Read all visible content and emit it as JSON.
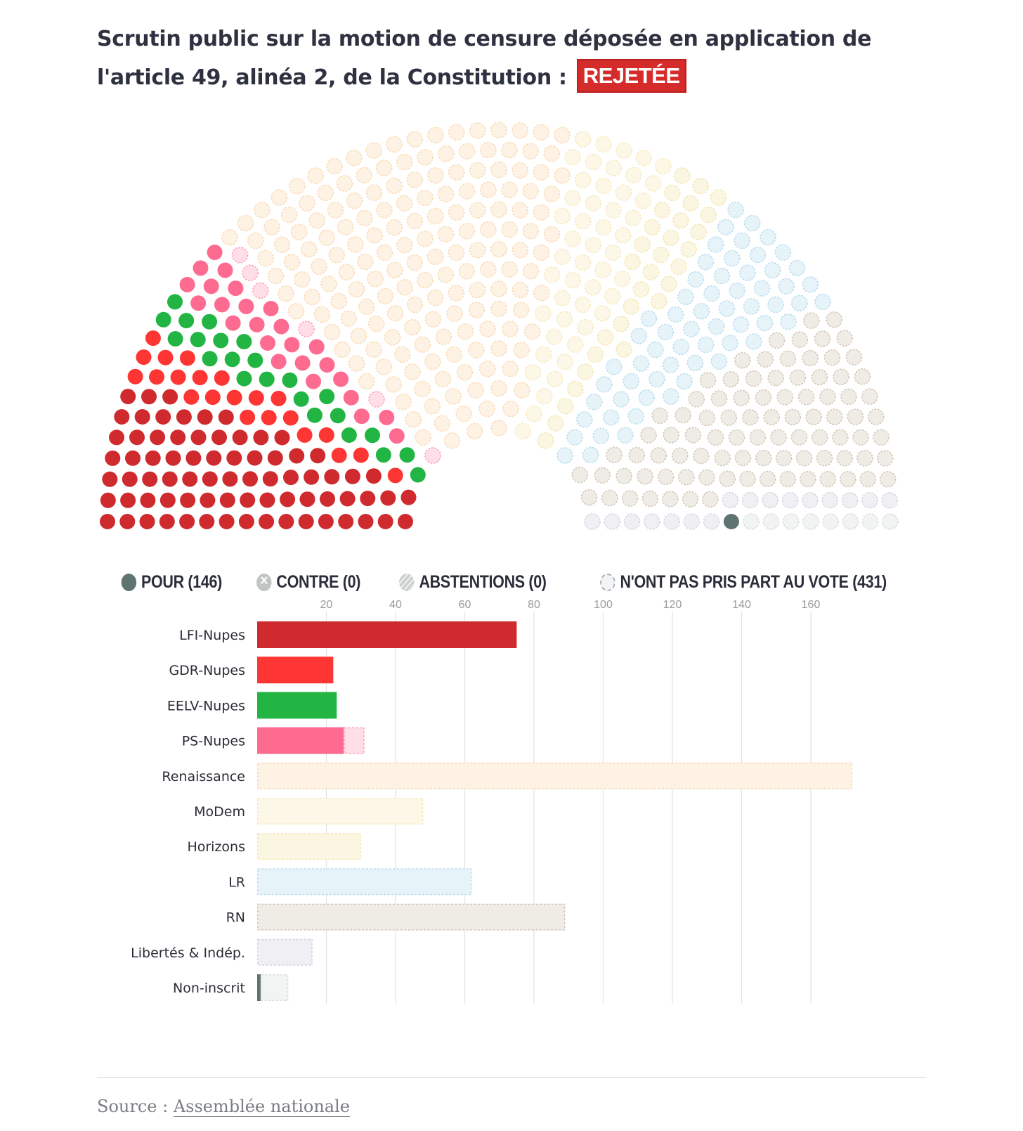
{
  "header": {
    "title": "Scrutin public sur la motion de censure déposée en application de l'article 49, alinéa 2, de la Constitution :",
    "result_badge": "REJETÉE"
  },
  "legend": [
    {
      "key": "pour",
      "label": "POUR (146)"
    },
    {
      "key": "contre",
      "label": "CONTRE (0)"
    },
    {
      "key": "abstentions",
      "label": "ABSTENTIONS (0)"
    },
    {
      "key": "npv",
      "label": "N'ONT PAS PRIS PART AU VOTE (431)"
    }
  ],
  "colors": {
    "pour_marker": "#5f7470",
    "badge": "#d62b2b",
    "grid": "#e3e3e3",
    "tick": "#9a9a9a"
  },
  "chart_data": {
    "type": "bar",
    "orientation": "horizontal",
    "stacked": true,
    "xticks": [
      20,
      40,
      60,
      80,
      100,
      120,
      140,
      160
    ],
    "xlim": [
      0,
      175
    ],
    "grid": true,
    "categories": [
      "LFI-Nupes",
      "GDR-Nupes",
      "EELV-Nupes",
      "PS-Nupes",
      "Renaissance",
      "MoDem",
      "Horizons",
      "LR",
      "RN",
      "Libertés & Indép.",
      "Non-inscrit"
    ],
    "groups": [
      {
        "name": "LFI-Nupes",
        "pour": 75,
        "npv": 0,
        "color": "#cf2a2d"
      },
      {
        "name": "GDR-Nupes",
        "pour": 22,
        "npv": 0,
        "color": "#fd3634"
      },
      {
        "name": "EELV-Nupes",
        "pour": 23,
        "npv": 0,
        "color": "#22b543"
      },
      {
        "name": "PS-Nupes",
        "pour": 25,
        "npv": 6,
        "color": "#fd6b91"
      },
      {
        "name": "Renaissance",
        "pour": 0,
        "npv": 172,
        "color": "#f5c583"
      },
      {
        "name": "MoDem",
        "pour": 0,
        "npv": 48,
        "color": "#f3dc94"
      },
      {
        "name": "Horizons",
        "pour": 0,
        "npv": 30,
        "color": "#ecd77a"
      },
      {
        "name": "LR",
        "pour": 0,
        "npv": 62,
        "color": "#8fc9e3"
      },
      {
        "name": "RN",
        "pour": 0,
        "npv": 89,
        "color": "#b8a68b"
      },
      {
        "name": "Libertés & Indép.",
        "pour": 0,
        "npv": 16,
        "color": "#bdb9cc"
      },
      {
        "name": "Non-inscrit",
        "pour": 1,
        "npv": 8,
        "color": "#c4c7c8"
      }
    ],
    "hemicycle_seats": 577
  },
  "source": {
    "prefix": "Source : ",
    "link": "Assemblée nationale"
  }
}
